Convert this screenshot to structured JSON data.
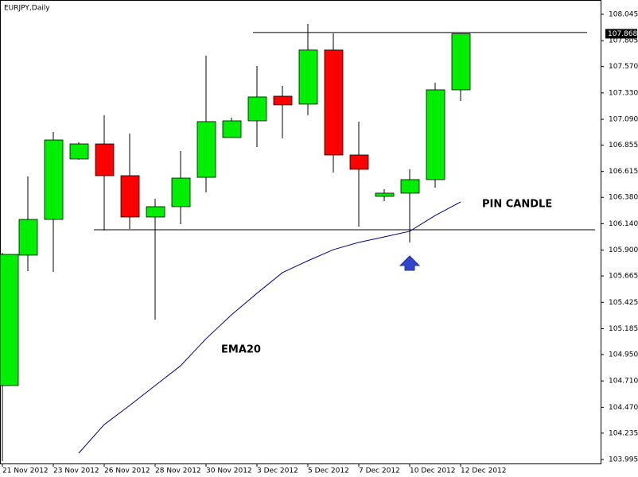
{
  "chart_data": {
    "type": "candlestick",
    "title": "EURJPY,Daily",
    "categories": [
      "21 Nov 2012",
      null,
      "23 Nov 2012",
      null,
      "26 Nov 2012",
      null,
      "28 Nov 2012",
      null,
      "30 Nov 2012",
      null,
      "3 Dec 2012",
      null,
      "5 Dec 2012",
      null,
      "7 Dec 2012",
      null,
      "10 Dec 2012",
      null,
      "12 Dec 2012"
    ],
    "open": [
      104.668,
      105.854,
      106.179,
      106.729,
      106.866,
      106.577,
      106.201,
      106.295,
      106.562,
      106.924,
      107.076,
      107.3,
      107.228,
      107.72,
      106.765,
      106.389,
      106.418,
      106.541,
      107.358
    ],
    "high": [
      105.875,
      106.57,
      106.975,
      106.881,
      107.127,
      106.96,
      106.367,
      106.801,
      107.669,
      107.105,
      107.575,
      107.394,
      107.958,
      107.871,
      107.069,
      106.454,
      106.635,
      107.423,
      107.868
    ],
    "low": [
      103.98,
      105.709,
      105.702,
      106.722,
      106.078,
      106.092,
      105.268,
      106.136,
      106.425,
      106.924,
      106.837,
      106.917,
      107.127,
      106.606,
      106.114,
      106.345,
      105.969,
      106.468,
      107.257
    ],
    "close": [
      105.861,
      106.179,
      106.902,
      106.866,
      106.577,
      106.201,
      106.295,
      106.555,
      107.069,
      107.076,
      107.293,
      107.221,
      107.72,
      106.765,
      106.635,
      106.418,
      106.541,
      107.358,
      107.868
    ],
    "up_color": "#00ee00",
    "down_color": "#ff0000",
    "ema": {
      "label": "EMA20",
      "color": "#00008b",
      "values": [
        null,
        null,
        null,
        104.053,
        104.313,
        104.487,
        104.668,
        104.848,
        105.094,
        105.311,
        105.507,
        105.695,
        105.803,
        105.904,
        105.97,
        106.02,
        106.071,
        106.215,
        106.338
      ]
    },
    "levels": [
      107.879,
      106.085
    ],
    "current_price": 107.868,
    "annotation": "PIN CANDLE",
    "ylim": [
      103.959,
      108.175
    ],
    "yticks": [
      108.045,
      107.805,
      {
        "value": 107.57,
        "label": "107.570"
      },
      {
        "value": 107.33,
        "label": "107.330"
      },
      {
        "value": 107.09,
        "label": "107.090"
      },
      106.855,
      106.615,
      {
        "value": 106.38,
        "label": "106.380"
      },
      {
        "value": 106.14,
        "label": "106.140"
      },
      {
        "value": 105.9,
        "label": "105.900"
      },
      105.665,
      105.425,
      105.185,
      {
        "value": 104.95,
        "label": "104.950"
      },
      {
        "value": 104.71,
        "label": "104.710"
      },
      {
        "value": 104.47,
        "label": "104.470"
      },
      104.235,
      103.995
    ]
  }
}
